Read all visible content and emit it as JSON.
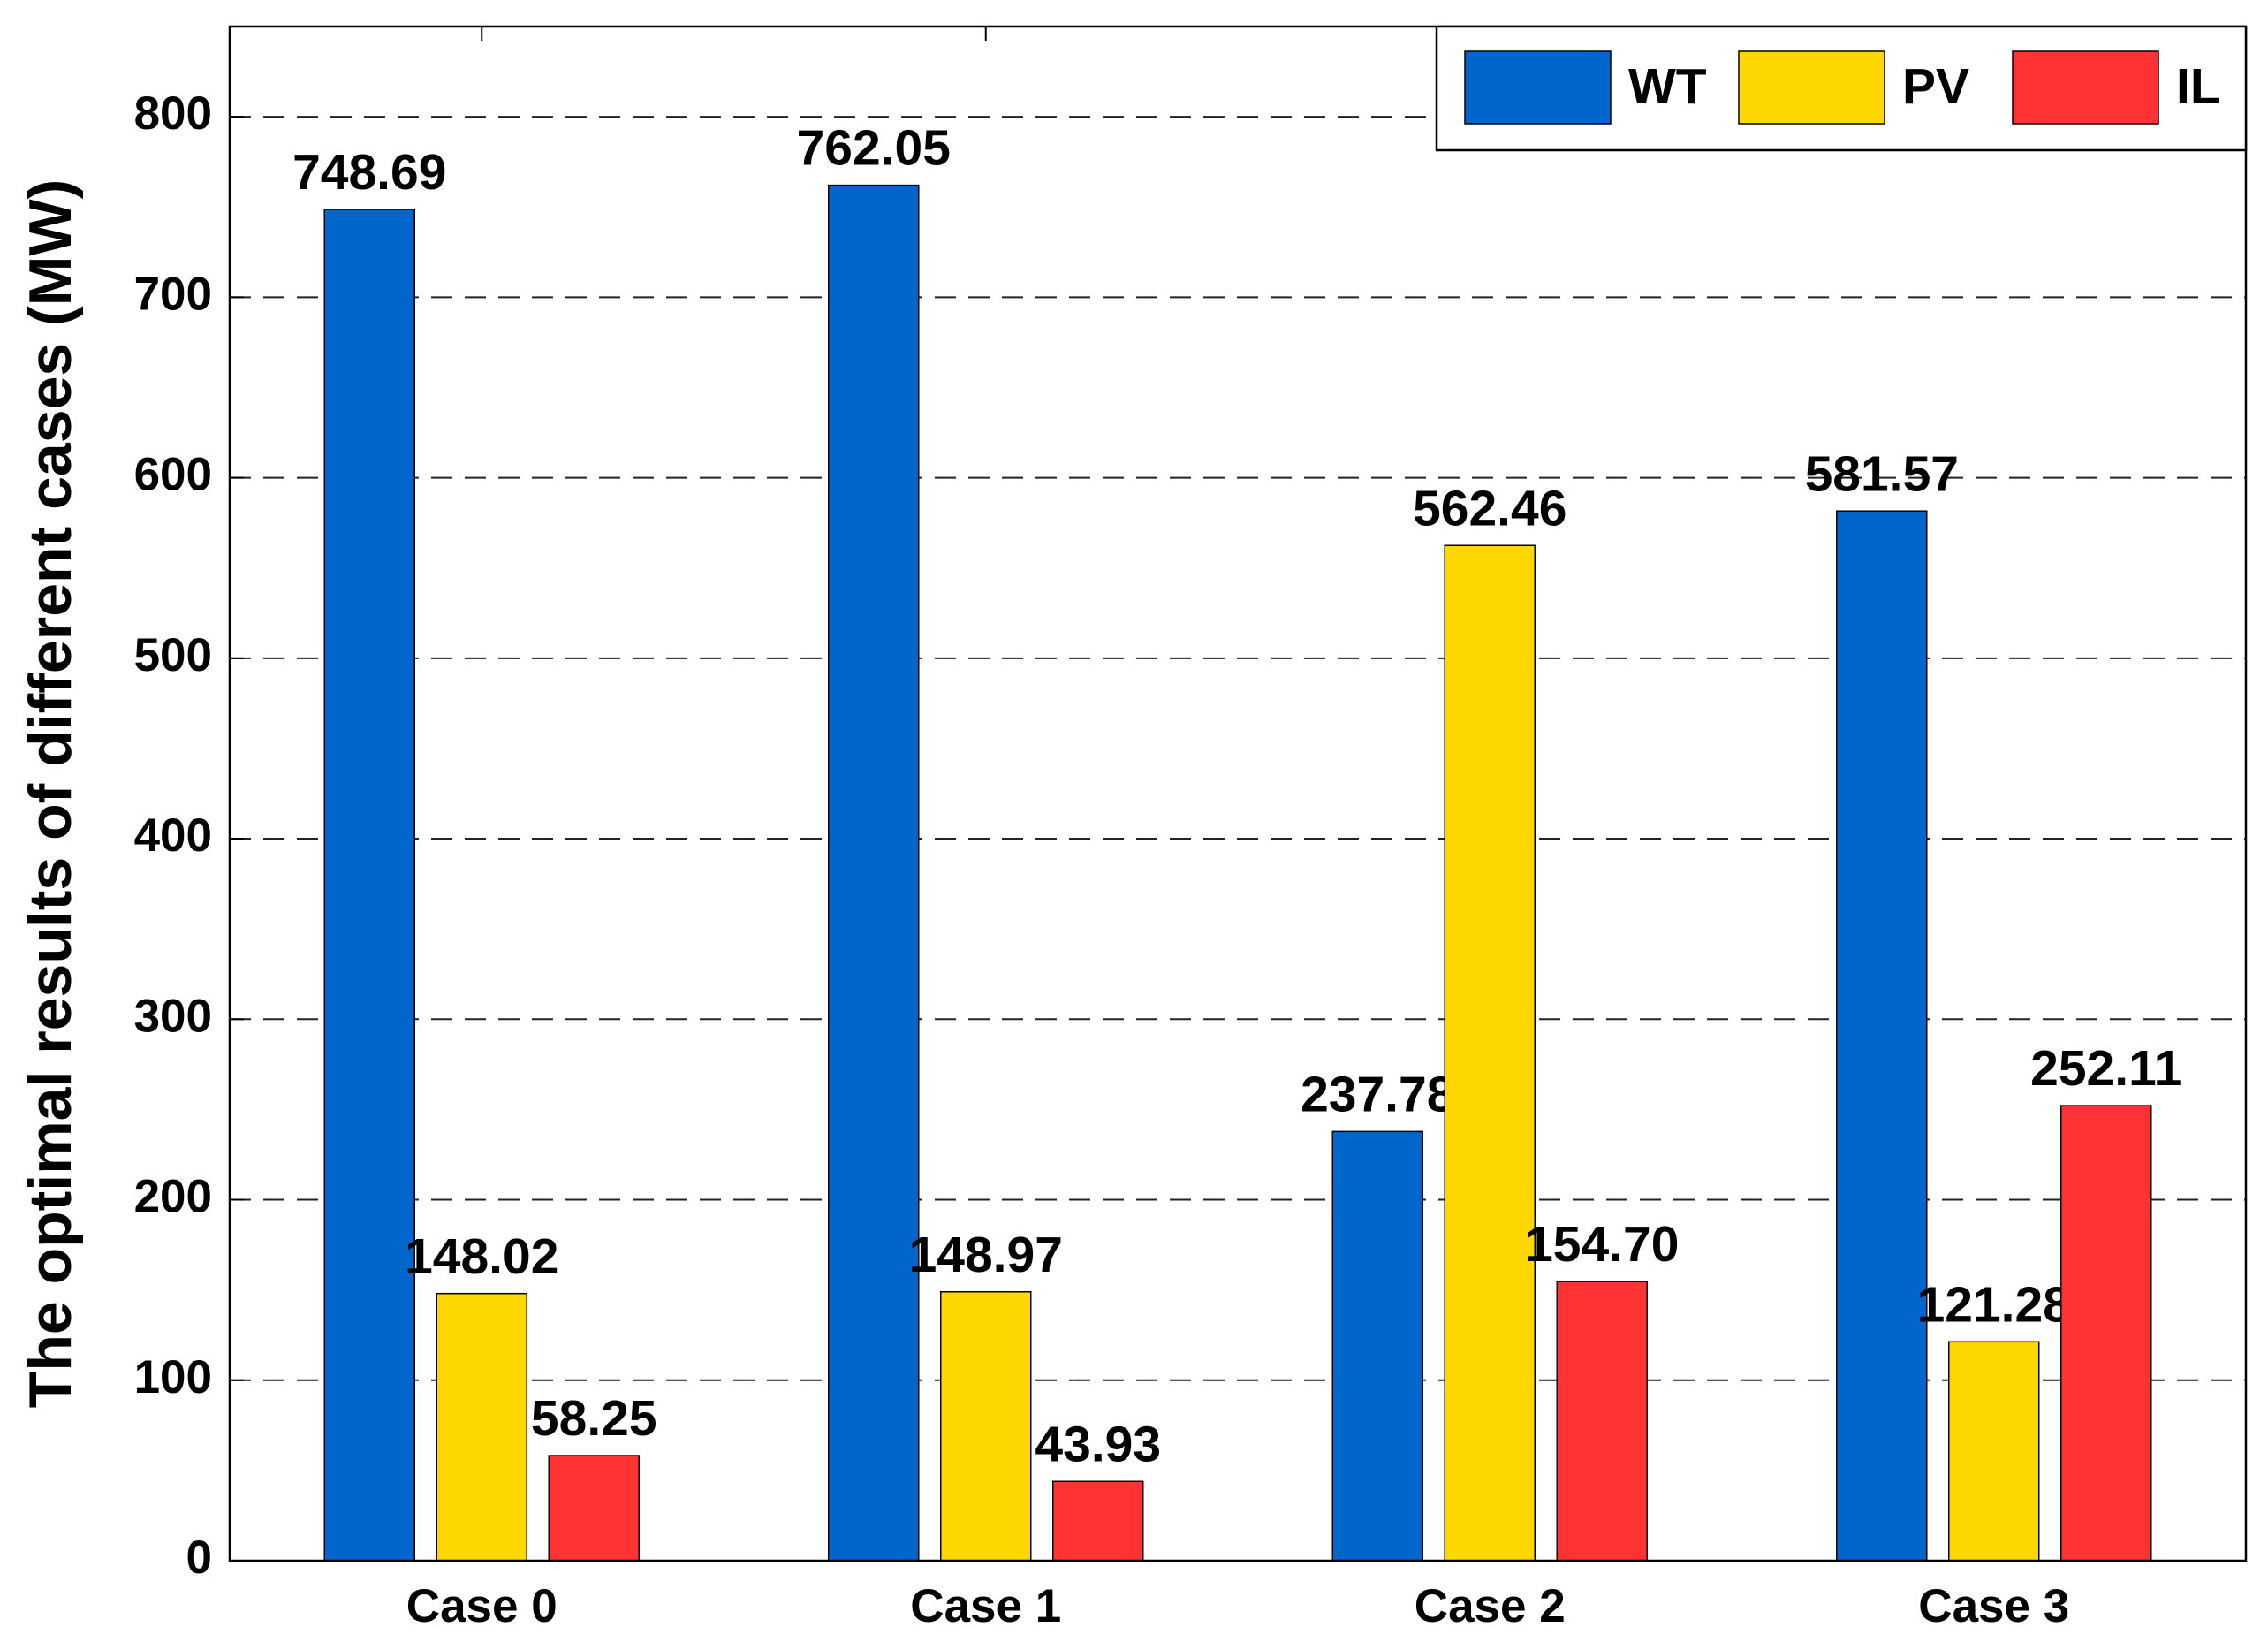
{
  "chart_data": {
    "type": "bar",
    "y_label": "The optimal results of different cases (MW)",
    "categories": [
      "Case 0",
      "Case 1",
      "Case 2",
      "Case 3"
    ],
    "series": [
      {
        "name": "WT",
        "color": "#0066cc",
        "values": [
          748.69,
          762.05,
          237.78,
          581.57
        ],
        "value_labels": [
          "748.69",
          "762.05",
          "237.78",
          "581.57"
        ]
      },
      {
        "name": "PV",
        "color": "#ffd700",
        "values": [
          148.02,
          148.97,
          562.46,
          121.28
        ],
        "value_labels": [
          "148.02",
          "148.97",
          "562.46",
          "121.28"
        ]
      },
      {
        "name": "IL",
        "color": "#ff3333",
        "values": [
          58.25,
          43.93,
          154.7,
          252.11
        ],
        "value_labels": [
          "58.25",
          "43.93",
          "154.70",
          "252.11"
        ]
      }
    ],
    "ylim": [
      0,
      850
    ],
    "yticks": [
      0,
      100,
      200,
      300,
      400,
      500,
      600,
      700,
      800
    ],
    "grid": true,
    "legend": "top-right"
  }
}
